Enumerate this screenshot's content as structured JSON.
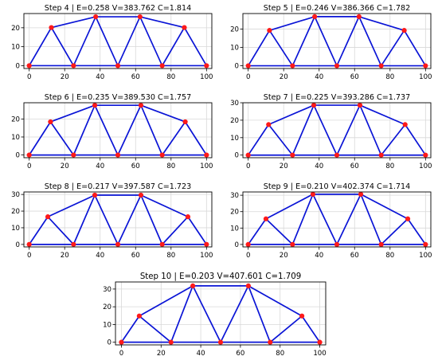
{
  "chart_data": [
    {
      "type": "line",
      "title": "Step 4 | E=0.258 V=383.762 C=1.814",
      "xlim": [
        -3,
        103
      ],
      "ylim": [
        -1.5,
        27.5
      ],
      "xticks": [
        0,
        20,
        40,
        60,
        80,
        100
      ],
      "yticks": [
        0,
        10,
        20
      ],
      "grid": true,
      "nodes": [
        [
          0,
          0
        ],
        [
          12.5,
          20.1
        ],
        [
          25,
          0
        ],
        [
          37.5,
          25.8
        ],
        [
          50,
          0
        ],
        [
          62.5,
          25.8
        ],
        [
          75,
          0
        ],
        [
          87.5,
          20.1
        ],
        [
          100,
          0
        ]
      ],
      "members": [
        [
          0,
          1
        ],
        [
          0,
          2
        ],
        [
          1,
          2
        ],
        [
          1,
          3
        ],
        [
          2,
          3
        ],
        [
          2,
          4
        ],
        [
          3,
          4
        ],
        [
          3,
          5
        ],
        [
          4,
          5
        ],
        [
          4,
          6
        ],
        [
          5,
          6
        ],
        [
          5,
          7
        ],
        [
          6,
          7
        ],
        [
          6,
          8
        ],
        [
          7,
          8
        ]
      ]
    },
    {
      "type": "line",
      "title": "Step 5 | E=0.246 V=386.366 C=1.782",
      "xlim": [
        -3,
        103
      ],
      "ylim": [
        -1.5,
        28.5
      ],
      "xticks": [
        0,
        20,
        40,
        60,
        80,
        100
      ],
      "yticks": [
        0,
        10,
        20
      ],
      "grid": true,
      "nodes": [
        [
          0,
          0
        ],
        [
          12,
          19.3
        ],
        [
          25,
          0
        ],
        [
          37.5,
          26.8
        ],
        [
          50,
          0
        ],
        [
          62.5,
          26.8
        ],
        [
          75,
          0
        ],
        [
          88,
          19.3
        ],
        [
          100,
          0
        ]
      ],
      "members": [
        [
          0,
          1
        ],
        [
          0,
          2
        ],
        [
          1,
          2
        ],
        [
          1,
          3
        ],
        [
          2,
          3
        ],
        [
          2,
          4
        ],
        [
          3,
          4
        ],
        [
          3,
          5
        ],
        [
          4,
          5
        ],
        [
          4,
          6
        ],
        [
          5,
          6
        ],
        [
          5,
          7
        ],
        [
          6,
          7
        ],
        [
          6,
          8
        ],
        [
          7,
          8
        ]
      ]
    },
    {
      "type": "line",
      "title": "Step 6 | E=0.235 V=389.530 C=1.757",
      "xlim": [
        -3,
        103
      ],
      "ylim": [
        -1.5,
        29
      ],
      "xticks": [
        0,
        20,
        40,
        60,
        80,
        100
      ],
      "yticks": [
        0,
        10,
        20
      ],
      "grid": true,
      "nodes": [
        [
          0,
          0
        ],
        [
          12,
          18.4
        ],
        [
          25,
          0
        ],
        [
          37,
          27.6
        ],
        [
          50,
          0
        ],
        [
          63,
          27.6
        ],
        [
          75,
          0
        ],
        [
          88,
          18.4
        ],
        [
          100,
          0
        ]
      ],
      "members": [
        [
          0,
          1
        ],
        [
          0,
          2
        ],
        [
          1,
          2
        ],
        [
          1,
          3
        ],
        [
          2,
          3
        ],
        [
          2,
          4
        ],
        [
          3,
          4
        ],
        [
          3,
          5
        ],
        [
          4,
          5
        ],
        [
          4,
          6
        ],
        [
          5,
          6
        ],
        [
          5,
          7
        ],
        [
          6,
          7
        ],
        [
          6,
          8
        ],
        [
          7,
          8
        ]
      ]
    },
    {
      "type": "line",
      "title": "Step 7 | E=0.225 V=393.286 C=1.737",
      "xlim": [
        -3,
        103
      ],
      "ylim": [
        -1.5,
        30
      ],
      "xticks": [
        0,
        20,
        40,
        60,
        80,
        100
      ],
      "yticks": [
        0,
        10,
        20,
        30
      ],
      "grid": true,
      "nodes": [
        [
          0,
          0
        ],
        [
          11.5,
          17.5
        ],
        [
          25,
          0
        ],
        [
          37,
          28.6
        ],
        [
          50,
          0
        ],
        [
          63,
          28.6
        ],
        [
          75,
          0
        ],
        [
          88.5,
          17.5
        ],
        [
          100,
          0
        ]
      ],
      "members": [
        [
          0,
          1
        ],
        [
          0,
          2
        ],
        [
          1,
          2
        ],
        [
          1,
          3
        ],
        [
          2,
          3
        ],
        [
          2,
          4
        ],
        [
          3,
          4
        ],
        [
          3,
          5
        ],
        [
          4,
          5
        ],
        [
          4,
          6
        ],
        [
          5,
          6
        ],
        [
          5,
          7
        ],
        [
          6,
          7
        ],
        [
          6,
          8
        ],
        [
          7,
          8
        ]
      ]
    },
    {
      "type": "line",
      "title": "Step 8 | E=0.217 V=397.587 C=1.723",
      "xlim": [
        -3,
        103
      ],
      "ylim": [
        -1.5,
        31.5
      ],
      "xticks": [
        0,
        20,
        40,
        60,
        80,
        100
      ],
      "yticks": [
        0,
        10,
        20,
        30
      ],
      "grid": true,
      "nodes": [
        [
          0,
          0
        ],
        [
          10.5,
          16.6
        ],
        [
          25,
          0
        ],
        [
          37,
          29.6
        ],
        [
          50,
          0
        ],
        [
          63,
          29.6
        ],
        [
          75,
          0
        ],
        [
          89.5,
          16.6
        ],
        [
          100,
          0
        ]
      ],
      "members": [
        [
          0,
          1
        ],
        [
          0,
          2
        ],
        [
          1,
          2
        ],
        [
          1,
          3
        ],
        [
          2,
          3
        ],
        [
          2,
          4
        ],
        [
          3,
          4
        ],
        [
          3,
          5
        ],
        [
          4,
          5
        ],
        [
          4,
          6
        ],
        [
          5,
          6
        ],
        [
          5,
          7
        ],
        [
          6,
          7
        ],
        [
          6,
          8
        ],
        [
          7,
          8
        ]
      ]
    },
    {
      "type": "line",
      "title": "Step 9 | E=0.210 V=402.374 C=1.714",
      "xlim": [
        -3,
        103
      ],
      "ylim": [
        -1.5,
        32
      ],
      "xticks": [
        0,
        20,
        40,
        60,
        80,
        100
      ],
      "yticks": [
        0,
        10,
        20,
        30
      ],
      "grid": true,
      "nodes": [
        [
          0,
          0
        ],
        [
          10,
          15.6
        ],
        [
          25,
          0
        ],
        [
          36.5,
          30.6
        ],
        [
          50,
          0
        ],
        [
          63.5,
          30.6
        ],
        [
          75,
          0
        ],
        [
          90,
          15.6
        ],
        [
          100,
          0
        ]
      ],
      "members": [
        [
          0,
          1
        ],
        [
          0,
          2
        ],
        [
          1,
          2
        ],
        [
          1,
          3
        ],
        [
          2,
          3
        ],
        [
          2,
          4
        ],
        [
          3,
          4
        ],
        [
          3,
          5
        ],
        [
          4,
          5
        ],
        [
          4,
          6
        ],
        [
          5,
          6
        ],
        [
          5,
          7
        ],
        [
          6,
          7
        ],
        [
          6,
          8
        ],
        [
          7,
          8
        ]
      ]
    },
    {
      "type": "line",
      "title": "Step 10 | E=0.203 V=407.601 C=1.709",
      "xlim": [
        -3,
        103
      ],
      "ylim": [
        -1.5,
        34
      ],
      "xticks": [
        0,
        20,
        40,
        60,
        80,
        100
      ],
      "yticks": [
        0,
        10,
        20,
        30
      ],
      "grid": true,
      "nodes": [
        [
          0,
          0
        ],
        [
          9,
          14.8
        ],
        [
          25,
          0
        ],
        [
          36,
          31.8
        ],
        [
          50,
          0
        ],
        [
          64,
          31.8
        ],
        [
          75,
          0
        ],
        [
          91,
          14.8
        ],
        [
          100,
          0
        ]
      ],
      "members": [
        [
          0,
          1
        ],
        [
          0,
          2
        ],
        [
          1,
          2
        ],
        [
          1,
          3
        ],
        [
          2,
          3
        ],
        [
          2,
          4
        ],
        [
          3,
          4
        ],
        [
          3,
          5
        ],
        [
          4,
          5
        ],
        [
          4,
          6
        ],
        [
          5,
          6
        ],
        [
          5,
          7
        ],
        [
          6,
          7
        ],
        [
          6,
          8
        ],
        [
          7,
          8
        ]
      ]
    }
  ],
  "colors": {
    "member": "#0a14d6",
    "node": "#ff1a1a",
    "grid": "#d8d8d8",
    "axis": "#000000"
  }
}
